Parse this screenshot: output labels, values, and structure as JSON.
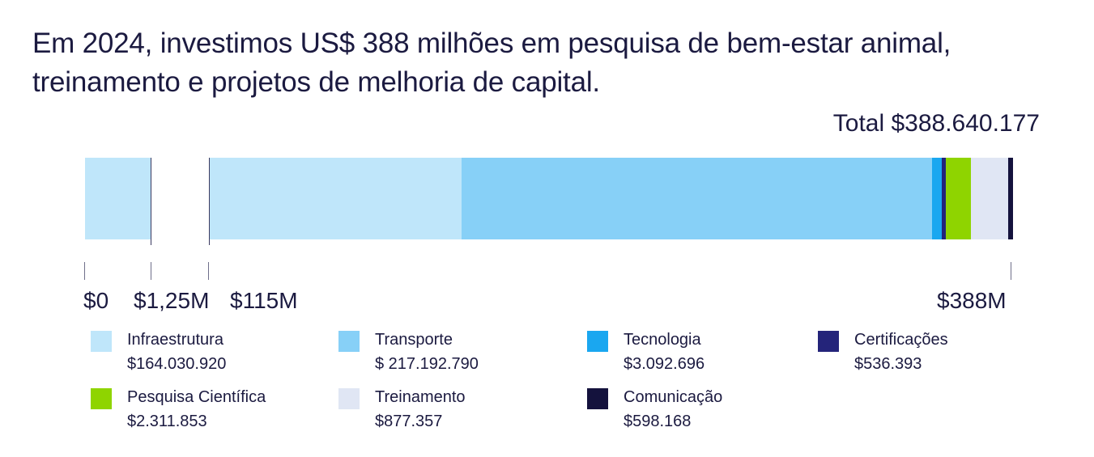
{
  "chart_data": {
    "type": "bar",
    "orientation": "horizontal-stacked",
    "title": "Em 2024, investimos US$ 388 milhões em pesquisa de bem-estar animal, treinamento e projetos de melhoria de capital.",
    "total_label": "Total $388.640.177",
    "tick_labels": [
      "$0",
      "$1,25M",
      "$115M",
      "$388M"
    ],
    "axis_break": [
      "$1,25M",
      "$115M"
    ],
    "series": [
      {
        "name": "Infraestrutura",
        "label": "$164.030.920",
        "value": 164030920,
        "color": "#bfe6fa"
      },
      {
        "name": "Transporte",
        "label": "$ 217.192.790",
        "value": 217192790,
        "color": "#87d0f7"
      },
      {
        "name": "Tecnologia",
        "label": "$3.092.696",
        "value": 3092696,
        "color": "#1aa7f0"
      },
      {
        "name": "Certificações",
        "label": "$536.393",
        "value": 536393,
        "color": "#24247a"
      },
      {
        "name": "Pesquisa Científica",
        "label": "$2.311.853",
        "value": 2311853,
        "color": "#8fd400"
      },
      {
        "name": "Treinamento",
        "label": "$877.357",
        "value": 877357,
        "color": "#e0e6f4"
      },
      {
        "name": "Comunicação",
        "label": "$598.168",
        "value": 598168,
        "color": "#14123d"
      }
    ]
  }
}
